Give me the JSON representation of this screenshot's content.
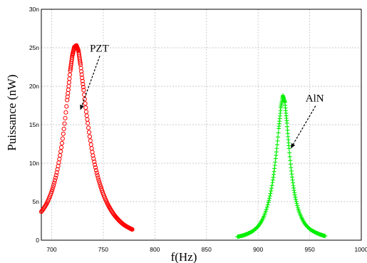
{
  "chart_data": {
    "type": "scatter",
    "title": "",
    "xlabel": "f(Hz)",
    "ylabel": "Puissance (nW)",
    "xlim": [
      690,
      1000
    ],
    "ylim": [
      0,
      30
    ],
    "x_ticks": [
      "700",
      "750",
      "800",
      "850",
      "900",
      "950",
      "1000"
    ],
    "y_ticks": [
      "0",
      "5n",
      "10n",
      "15n",
      "20n",
      "25n",
      "30n"
    ],
    "grid": true,
    "series": [
      {
        "color": "#ff0000",
        "marker": "circle",
        "x": [
          690,
          695,
          700,
          705,
          710,
          715,
          718,
          720,
          722,
          724,
          726,
          728,
          731,
          735,
          740,
          745,
          750,
          755,
          760,
          765,
          770,
          775,
          778
        ],
        "y": [
          3.7,
          4.7,
          6.3,
          8.8,
          12.6,
          18.2,
          22.0,
          24.0,
          25.1,
          25.3,
          24.6,
          22.8,
          19.5,
          15.2,
          11.0,
          8.1,
          6.0,
          4.5,
          3.4,
          2.6,
          2.0,
          1.6,
          1.4
        ]
      },
      {
        "color": "#00ee00",
        "marker": "plus",
        "x": [
          880,
          885,
          890,
          895,
          900,
          905,
          910,
          914,
          917,
          920,
          922,
          924,
          926,
          928,
          930,
          933,
          936,
          940,
          945,
          950,
          955,
          960,
          965
        ],
        "y": [
          0.45,
          0.6,
          0.85,
          1.2,
          1.8,
          2.9,
          4.9,
          7.5,
          10.6,
          14.5,
          17.2,
          18.8,
          17.9,
          15.2,
          11.9,
          8.2,
          5.6,
          3.6,
          2.2,
          1.45,
          1.05,
          0.75,
          0.55
        ]
      }
    ],
    "annotations": [
      {
        "text": "PZT",
        "x": 737,
        "y": 24.5,
        "arrow_to": [
          728,
          17.0
        ]
      },
      {
        "text": "AlN",
        "x": 946,
        "y": 18.0,
        "arrow_to": [
          932,
          12.0
        ]
      }
    ]
  }
}
